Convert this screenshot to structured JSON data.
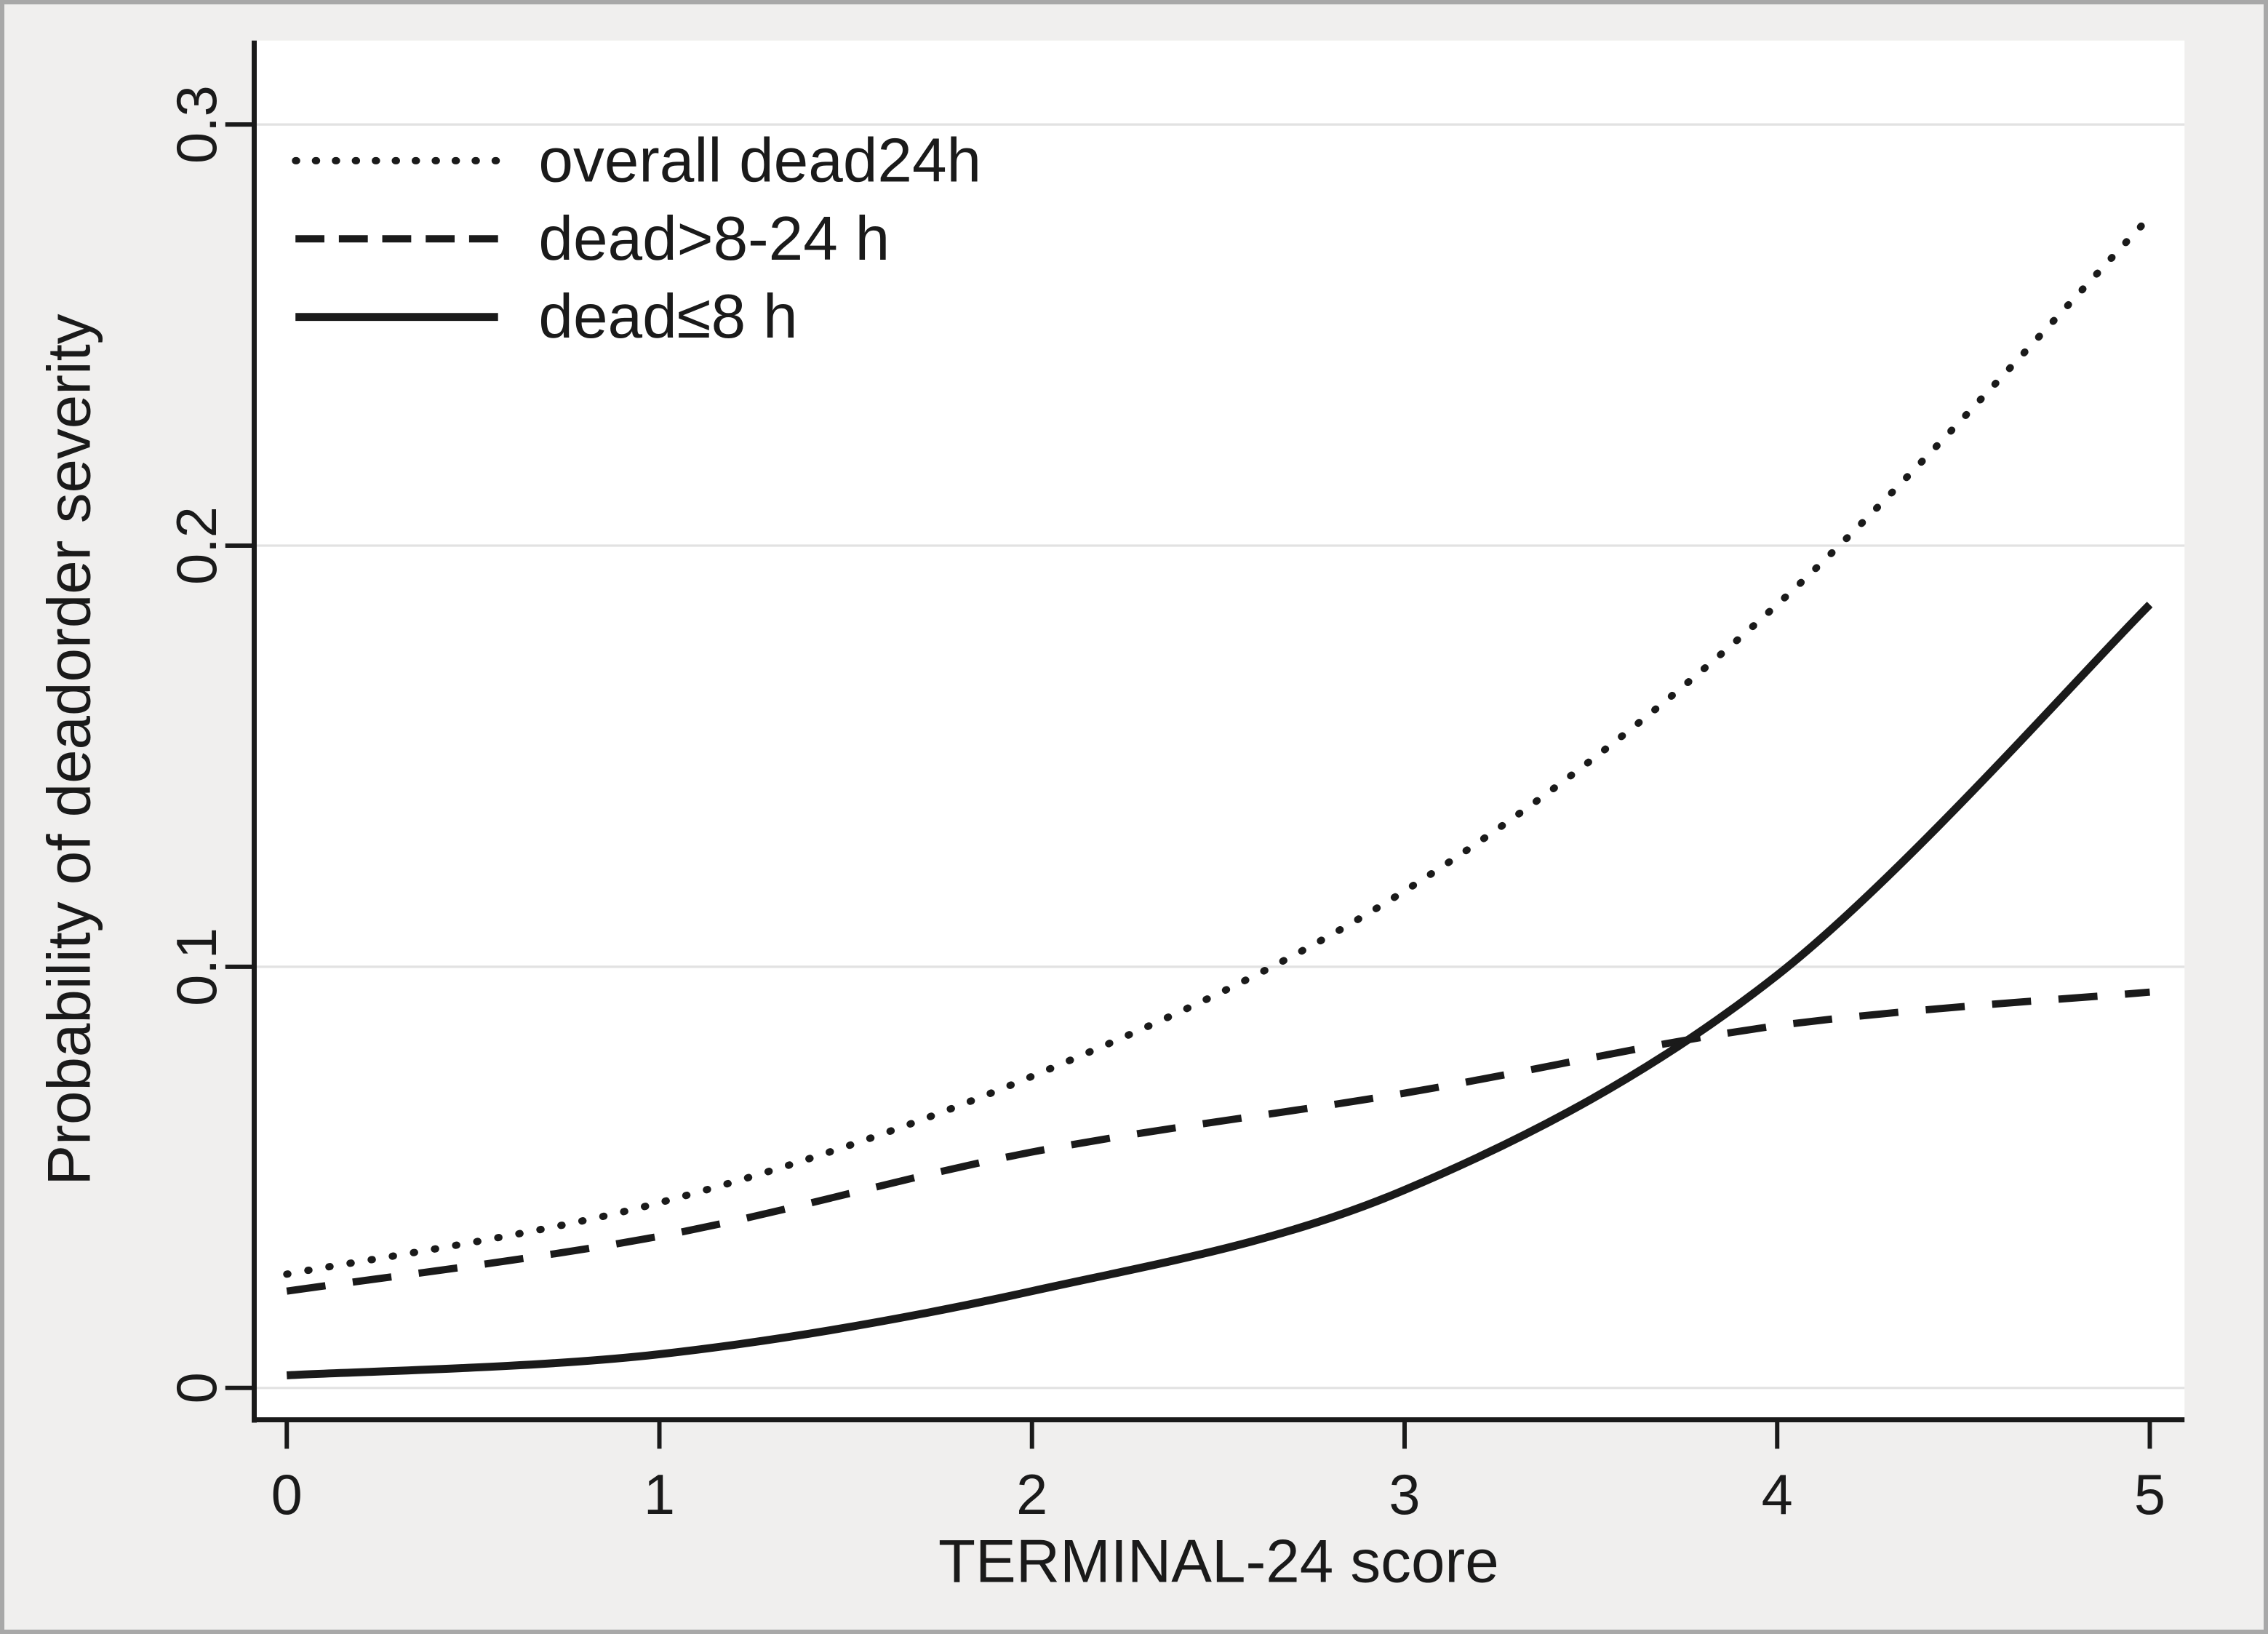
{
  "chart_data": {
    "type": "line",
    "title": "",
    "xlabel": "TERMINAL-24 score",
    "ylabel": "Probability of deadorder severity",
    "x": [
      0,
      1,
      2,
      3,
      4,
      5
    ],
    "xlim": [
      0,
      5
    ],
    "ylim": [
      0,
      0.3
    ],
    "xticks": [
      0,
      1,
      2,
      3,
      4,
      5
    ],
    "xtick_labels": [
      "0",
      "1",
      "2",
      "3",
      "4",
      "5"
    ],
    "yticks": [
      0,
      0.1,
      0.2,
      0.3
    ],
    "ytick_labels": [
      "0",
      "0.1",
      "0.2",
      "0.3"
    ],
    "grid": "horizontal gridlines at each y tick, light gray, on white plot background",
    "legend_position": "top-left inside plot area, no frame",
    "series": [
      {
        "name": "overall dead24h",
        "style": "dotted",
        "values": [
          0.027,
          0.044,
          0.074,
          0.118,
          0.186,
          0.278
        ]
      },
      {
        "name": "dead>8-24 h",
        "style": "dashed",
        "values": [
          0.023,
          0.036,
          0.056,
          0.07,
          0.086,
          0.094
        ]
      },
      {
        "name": "dead≤8 h",
        "style": "solid",
        "values": [
          0.003,
          0.008,
          0.023,
          0.047,
          0.098,
          0.186
        ]
      }
    ],
    "colors": {
      "line": "#1a1a1a",
      "text": "#1a1a1a",
      "gridline": "#e2e2e2",
      "plot_background": "#ffffff",
      "figure_background": "#f0efee",
      "figure_border": "#a8a8a8"
    }
  }
}
